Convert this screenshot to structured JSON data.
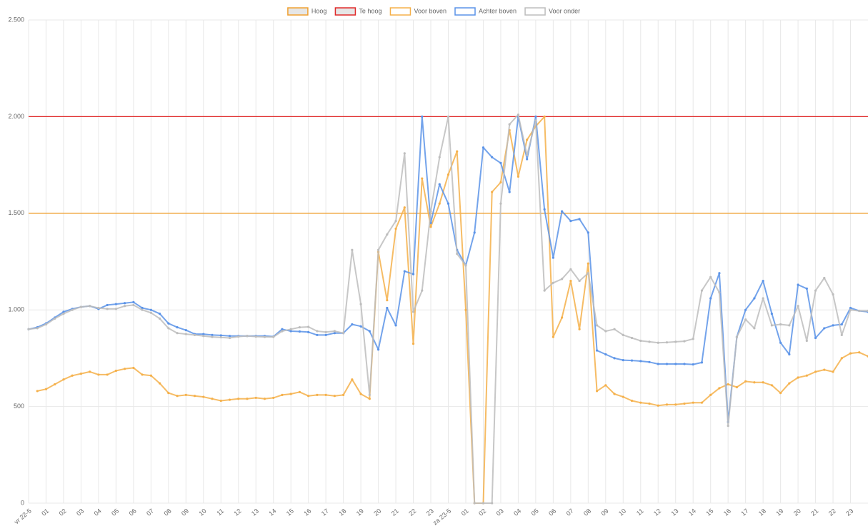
{
  "chart_data": {
    "type": "line",
    "categories": [
      "vr 22-5",
      null,
      "01",
      null,
      "02",
      null,
      "03",
      null,
      "04",
      null,
      "05",
      null,
      "06",
      null,
      "07",
      null,
      "08",
      null,
      "09",
      null,
      "10",
      null,
      "11",
      null,
      "12",
      null,
      "13",
      null,
      "14",
      null,
      "15",
      null,
      "16",
      null,
      "17",
      null,
      "18",
      null,
      "19",
      null,
      "20",
      null,
      "21",
      null,
      "22",
      null,
      "23",
      null,
      "za 23-5",
      null,
      "01",
      null,
      "02",
      null,
      "03",
      null,
      "04",
      null,
      "05",
      null,
      "06",
      null,
      "07",
      null,
      "08",
      null,
      "09",
      null,
      "10",
      null,
      "11",
      null,
      "12",
      null,
      "13",
      null,
      "14",
      null,
      "15",
      null,
      "16",
      null,
      "17",
      null,
      "18",
      null,
      "19",
      null,
      "20",
      null,
      "21",
      null,
      "22",
      null,
      "23",
      null,
      null
    ],
    "thresholds": [
      {
        "name": "Hoog",
        "value": 1500,
        "color": "#f0a030",
        "fill": "#e6e6e6"
      },
      {
        "name": "Te hoog",
        "value": 2000,
        "color": "#e02a2a",
        "fill": "#e6e6e6"
      }
    ],
    "series": [
      {
        "name": "Voor boven",
        "color": "#f5b04a",
        "values": [
          null,
          580,
          590,
          615,
          640,
          660,
          670,
          680,
          665,
          665,
          685,
          695,
          700,
          665,
          660,
          620,
          570,
          555,
          560,
          555,
          550,
          540,
          530,
          535,
          540,
          540,
          545,
          540,
          545,
          560,
          565,
          575,
          555,
          560,
          560,
          555,
          560,
          640,
          565,
          540,
          1300,
          1050,
          1420,
          1530,
          825,
          1680,
          1430,
          1550,
          1700,
          1820,
          1000,
          0,
          0,
          1610,
          1660,
          1930,
          1690,
          1880,
          1950,
          2000,
          860,
          960,
          1150,
          900,
          1240,
          580,
          610,
          565,
          550,
          530,
          520,
          515,
          505,
          510,
          510,
          515,
          520,
          520,
          560,
          595,
          615,
          600,
          630,
          625,
          625,
          610,
          570,
          620,
          650,
          660,
          680,
          690,
          680,
          750,
          775,
          780,
          760
        ]
      },
      {
        "name": "Achter boven",
        "color": "#5b93e8",
        "values": [
          900,
          910,
          930,
          960,
          990,
          1005,
          1015,
          1020,
          1005,
          1025,
          1030,
          1035,
          1040,
          1010,
          1000,
          980,
          930,
          910,
          895,
          875,
          875,
          870,
          868,
          865,
          865,
          865,
          865,
          865,
          862,
          900,
          890,
          888,
          885,
          870,
          870,
          880,
          880,
          925,
          915,
          890,
          795,
          1010,
          920,
          1200,
          1185,
          2000,
          1450,
          1650,
          1550,
          1310,
          1230,
          1400,
          1840,
          1790,
          1760,
          1610,
          2000,
          1780,
          2000,
          1520,
          1270,
          1510,
          1460,
          1470,
          1400,
          790,
          770,
          750,
          740,
          738,
          735,
          730,
          720,
          720,
          720,
          720,
          718,
          728,
          1060,
          1190,
          420,
          860,
          1000,
          1060,
          1150,
          980,
          830,
          770,
          1130,
          1110,
          855,
          905,
          920,
          925,
          1010,
          995,
          990
        ]
      },
      {
        "name": "Voor onder",
        "color": "#bdbdbd",
        "values": [
          900,
          905,
          925,
          955,
          980,
          1000,
          1015,
          1020,
          1010,
          1005,
          1005,
          1020,
          1025,
          1000,
          985,
          955,
          905,
          880,
          875,
          870,
          865,
          860,
          858,
          855,
          862,
          865,
          862,
          860,
          860,
          890,
          900,
          910,
          912,
          890,
          885,
          890,
          880,
          1310,
          1030,
          560,
          1310,
          1390,
          1460,
          1810,
          990,
          1100,
          1510,
          1790,
          2000,
          1290,
          1230,
          0,
          0,
          0,
          1550,
          1960,
          2010,
          1800,
          1980,
          1100,
          1140,
          1160,
          1210,
          1150,
          1190,
          920,
          890,
          900,
          870,
          855,
          840,
          835,
          830,
          832,
          835,
          838,
          850,
          1100,
          1170,
          1090,
          400,
          860,
          950,
          905,
          1060,
          920,
          925,
          920,
          1020,
          840,
          1100,
          1165,
          1080,
          870,
          1000,
          995,
          995
        ]
      }
    ],
    "ylim": [
      0,
      2500
    ],
    "yticks": [
      0,
      500,
      {
        "value": 1000,
        "label": "1.000"
      },
      {
        "value": 1500,
        "label": "1.500"
      },
      {
        "value": 2000,
        "label": "2.000"
      },
      {
        "value": 2500,
        "label": "2.500"
      }
    ],
    "grid": true,
    "legend": "top"
  }
}
